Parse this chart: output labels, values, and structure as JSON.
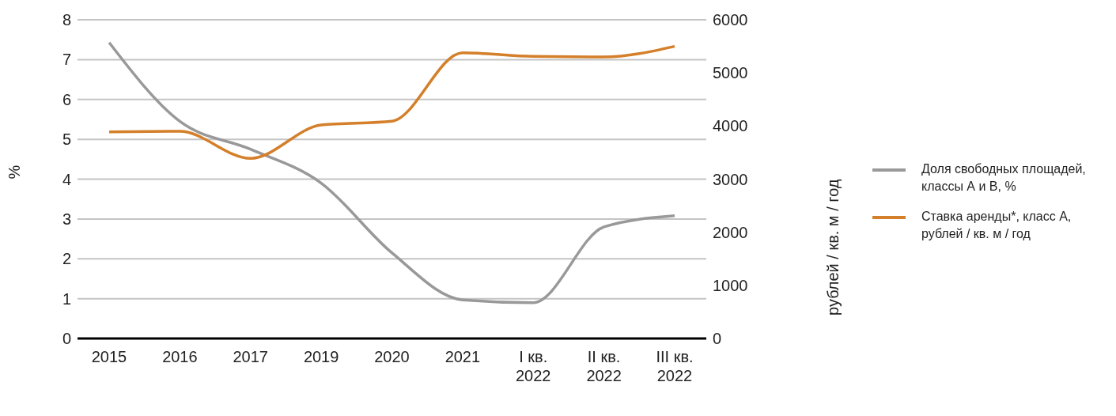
{
  "chart_data": {
    "type": "line",
    "ylabel": "%",
    "y2label": "рублей / кв. м / год",
    "categories": [
      "2015",
      "2016",
      "2017",
      "2019",
      "2020",
      "2021",
      "I кв. 2022",
      "II кв. 2022",
      "III кв. 2022"
    ],
    "series": [
      {
        "name": "Доля свободных площадей, классы А и В, %",
        "color": "#999999",
        "values": [
          7.43,
          5.45,
          4.75,
          3.9,
          2.15,
          0.97,
          0.9,
          2.8,
          3.08
        ]
      },
      {
        "name": "Ставка аренды*, класс А, рублей / кв. м / год",
        "color": "#d47f2a",
        "axis": "y2",
        "values": [
          3890,
          3900,
          3390,
          4020,
          4090,
          5380,
          5310,
          5300,
          5500
        ]
      }
    ],
    "ylim": [
      0,
      8
    ],
    "yticks": [
      0,
      1,
      2,
      3,
      4,
      5,
      6,
      7,
      8
    ],
    "y2lim": [
      0,
      6000
    ],
    "y2ticks": [
      0,
      1000,
      2000,
      3000,
      4000,
      5000,
      6000
    ],
    "grid": "y",
    "legend": "right",
    "marker": "none",
    "line_style": "solid"
  }
}
